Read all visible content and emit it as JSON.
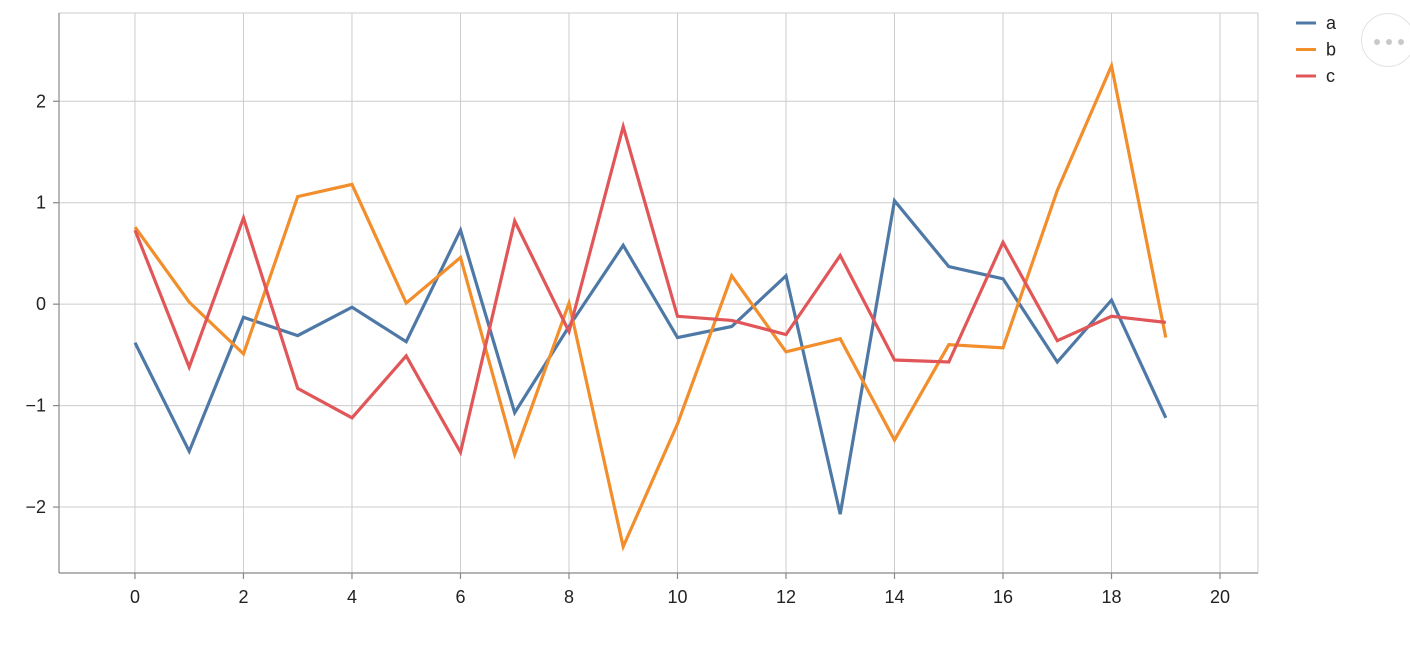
{
  "chart_data": {
    "type": "line",
    "title": "",
    "xlabel": "",
    "ylabel": "",
    "x": [
      0,
      1,
      2,
      3,
      4,
      5,
      6,
      7,
      8,
      9,
      10,
      11,
      12,
      13,
      14,
      15,
      16,
      17,
      18,
      19
    ],
    "xlim": [
      -1.4,
      20.7
    ],
    "ylim": [
      -2.65,
      2.87
    ],
    "x_ticks": [
      0,
      2,
      4,
      6,
      8,
      10,
      12,
      14,
      16,
      18,
      20
    ],
    "y_ticks": [
      -2,
      -1,
      0,
      1,
      2
    ],
    "x_tick_labels": [
      "0",
      "2",
      "4",
      "6",
      "8",
      "10",
      "12",
      "14",
      "16",
      "18",
      "20"
    ],
    "y_tick_labels": [
      "−2",
      "−1",
      "0",
      "1",
      "2"
    ],
    "grid": true,
    "legend_position": "top-right",
    "series": [
      {
        "name": "a",
        "color": "#4e79a7",
        "values": [
          -0.38,
          -1.45,
          -0.13,
          -0.31,
          -0.03,
          -0.37,
          0.73,
          -1.07,
          -0.22,
          0.58,
          -0.33,
          -0.22,
          0.28,
          -2.07,
          1.02,
          0.37,
          0.25,
          -0.57,
          0.04,
          -1.12
        ]
      },
      {
        "name": "b",
        "color": "#f28e2b",
        "values": [
          0.76,
          0.02,
          -0.49,
          1.06,
          1.18,
          0.01,
          0.46,
          -1.48,
          0.01,
          -2.39,
          -1.18,
          0.28,
          -0.47,
          -0.34,
          -1.34,
          -0.4,
          -0.43,
          1.12,
          2.35,
          -0.33
        ]
      },
      {
        "name": "c",
        "color": "#e15759",
        "values": [
          0.73,
          -0.62,
          0.85,
          -0.83,
          -1.12,
          -0.51,
          -1.46,
          0.82,
          -0.27,
          1.75,
          -0.12,
          -0.16,
          -0.3,
          0.48,
          -0.55,
          -0.57,
          0.61,
          -0.36,
          -0.12,
          -0.18
        ]
      }
    ]
  }
}
